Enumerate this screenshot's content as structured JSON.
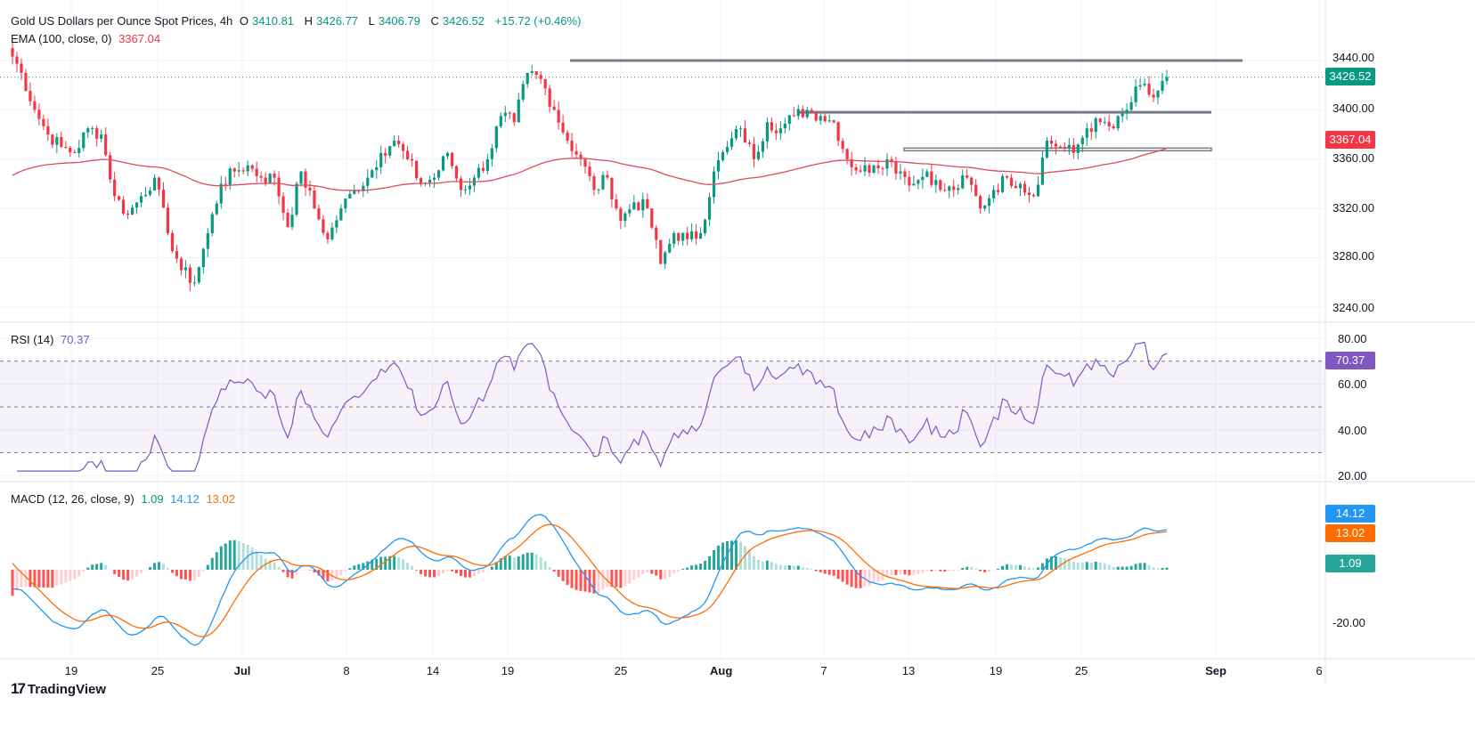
{
  "legend": {
    "title": "Gold US Dollars per Ounce Spot Prices, 4h",
    "o_label": "O",
    "o": "3410.81",
    "h_label": "H",
    "h": "3426.77",
    "l_label": "L",
    "l": "3406.79",
    "c_label": "C",
    "c": "3426.52",
    "change": "+15.72 (+0.46%)",
    "ema_label": "EMA (100, close, 0)",
    "ema_value": "3367.04",
    "rsi_label": "RSI (14)",
    "rsi_value": "70.37",
    "macd_label": "MACD (12, 26, close, 9)",
    "macd_hist": "1.09",
    "macd_line": "14.12",
    "macd_signal": "13.02"
  },
  "branding": "TradingView",
  "colors": {
    "up": "#089981",
    "down": "#f23645",
    "ema": "#e04a59",
    "rsi": "#7e57c2",
    "macd": "#2196f3",
    "signal": "#ff6d00",
    "levels": "#787b86"
  },
  "chart_data": {
    "type": "candlestick",
    "timeframe": "4h",
    "x_ticks": [
      "19",
      "25",
      "Jul",
      "8",
      "14",
      "19",
      "25",
      "Aug",
      "7",
      "13",
      "19",
      "25",
      "Sep",
      "6"
    ],
    "price_axis": {
      "ticks": [
        "3440.00",
        "3400.00",
        "3360.00",
        "3320.00",
        "3280.00",
        "3240.00"
      ],
      "range": [
        3230,
        3455
      ]
    },
    "rsi_axis": {
      "ticks": [
        "80.00",
        "60.00",
        "40.00",
        "20.00"
      ],
      "bands": [
        70,
        50,
        30
      ]
    },
    "macd_axis": {
      "ticks": [
        "-20.00"
      ]
    },
    "last_price": "3426.52",
    "ema_last": "3367.04",
    "horizontal_levels": [
      3440,
      3398,
      3367
    ],
    "closes": [
      3450,
      3430,
      3400,
      3380,
      3370,
      3365,
      3385,
      3380,
      3330,
      3315,
      3330,
      3345,
      3300,
      3270,
      3260,
      3300,
      3340,
      3350,
      3355,
      3345,
      3345,
      3305,
      3350,
      3320,
      3295,
      3320,
      3335,
      3345,
      3365,
      3375,
      3360,
      3340,
      3345,
      3365,
      3335,
      3345,
      3360,
      3395,
      3390,
      3430,
      3425,
      3400,
      3375,
      3360,
      3335,
      3345,
      3310,
      3325,
      3320,
      3275,
      3300,
      3295,
      3300,
      3350,
      3370,
      3385,
      3360,
      3390,
      3385,
      3395,
      3400,
      3395,
      3390,
      3360,
      3350,
      3355,
      3360,
      3350,
      3340,
      3350,
      3335,
      3335,
      3345,
      3320,
      3335,
      3345,
      3340,
      3330,
      3375,
      3370,
      3365,
      3385,
      3390,
      3385,
      3400,
      3420,
      3410,
      3426.52
    ]
  }
}
